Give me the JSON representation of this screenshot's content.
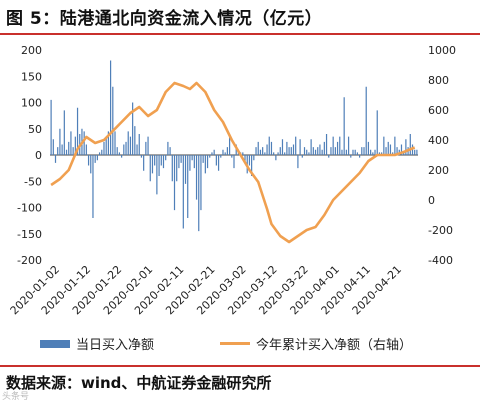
{
  "title": "图 5：陆港通北向资金流入情况（亿元）",
  "source": "数据来源：wind、中航证券金融研究所",
  "watermark": "头条号",
  "legend": {
    "bar_label": "当日买入净额",
    "line_label": "今年累计买入净额（右轴）"
  },
  "colors": {
    "bar": "#4f7fb8",
    "line": "#f0a050",
    "rule": "#c9302c"
  },
  "chart_data": {
    "type": "bar",
    "title": "",
    "x_tick_labels": [
      "2020-01-02",
      "2020-01-12",
      "2020-01-22",
      "2020-02-01",
      "2020-02-11",
      "2020-02-21",
      "2020-03-02",
      "2020-03-12",
      "2020-03-22",
      "2020-04-01",
      "2020-04-11",
      "2020-04-21"
    ],
    "y_left": {
      "min": -200,
      "max": 200,
      "ticks": [
        -200,
        -150,
        -100,
        -50,
        0,
        50,
        100,
        150,
        200
      ]
    },
    "y_right": {
      "min": -400,
      "max": 1000,
      "ticks": [
        -400,
        -200,
        0,
        200,
        400,
        600,
        800,
        1000
      ]
    },
    "series": [
      {
        "name": "当日买入净额",
        "kind": "bar",
        "axis": "left",
        "values": [
          105,
          30,
          -15,
          15,
          50,
          20,
          85,
          10,
          25,
          45,
          15,
          35,
          90,
          40,
          50,
          45,
          20,
          -20,
          -35,
          -120,
          -15,
          -10,
          5,
          10,
          25,
          35,
          45,
          180,
          130,
          45,
          15,
          5,
          -5,
          20,
          25,
          45,
          35,
          100,
          55,
          20,
          40,
          -5,
          -30,
          25,
          35,
          -50,
          -35,
          -20,
          -75,
          -40,
          -20,
          -25,
          -10,
          25,
          15,
          -50,
          -105,
          -50,
          -25,
          -15,
          -140,
          -55,
          -120,
          -30,
          -10,
          -25,
          -85,
          -145,
          -105,
          -15,
          -35,
          -25,
          -5,
          5,
          10,
          -20,
          -30,
          -5,
          10,
          5,
          15,
          35,
          -5,
          -25,
          20,
          10,
          5,
          5,
          -15,
          -35,
          -20,
          -40,
          -10,
          15,
          25,
          10,
          15,
          5,
          20,
          35,
          25,
          5,
          -10,
          5,
          15,
          30,
          5,
          25,
          15,
          15,
          20,
          35,
          -25,
          30,
          -5,
          15,
          10,
          5,
          30,
          15,
          10,
          15,
          20,
          10,
          25,
          40,
          -5,
          15,
          35,
          15,
          25,
          35,
          10,
          110,
          10,
          35,
          -5,
          10,
          10,
          5,
          -5,
          15,
          15,
          130,
          25,
          10,
          5,
          10,
          85,
          5,
          5,
          35,
          15,
          25,
          20,
          5,
          35,
          15,
          10,
          20,
          5,
          30,
          15,
          40,
          20,
          10,
          10
        ]
      },
      {
        "name": "今年累计买入净额（右轴）",
        "kind": "line",
        "axis": "right",
        "points": [
          [
            0,
            100
          ],
          [
            4,
            140
          ],
          [
            8,
            200
          ],
          [
            12,
            340
          ],
          [
            16,
            420
          ],
          [
            20,
            380
          ],
          [
            24,
            400
          ],
          [
            28,
            460
          ],
          [
            32,
            520
          ],
          [
            36,
            580
          ],
          [
            40,
            620
          ],
          [
            44,
            560
          ],
          [
            48,
            600
          ],
          [
            52,
            720
          ],
          [
            56,
            780
          ],
          [
            60,
            760
          ],
          [
            63,
            740
          ],
          [
            66,
            780
          ],
          [
            70,
            720
          ],
          [
            74,
            600
          ],
          [
            78,
            520
          ],
          [
            82,
            400
          ],
          [
            86,
            300
          ],
          [
            90,
            200
          ],
          [
            94,
            120
          ],
          [
            98,
            -60
          ],
          [
            100,
            -160
          ],
          [
            104,
            -240
          ],
          [
            108,
            -280
          ],
          [
            112,
            -240
          ],
          [
            116,
            -200
          ],
          [
            120,
            -180
          ],
          [
            124,
            -100
          ],
          [
            128,
            0
          ],
          [
            132,
            60
          ],
          [
            136,
            120
          ],
          [
            140,
            180
          ],
          [
            144,
            260
          ],
          [
            148,
            300
          ],
          [
            152,
            300
          ],
          [
            156,
            300
          ],
          [
            160,
            320
          ],
          [
            165,
            350
          ]
        ]
      }
    ]
  }
}
